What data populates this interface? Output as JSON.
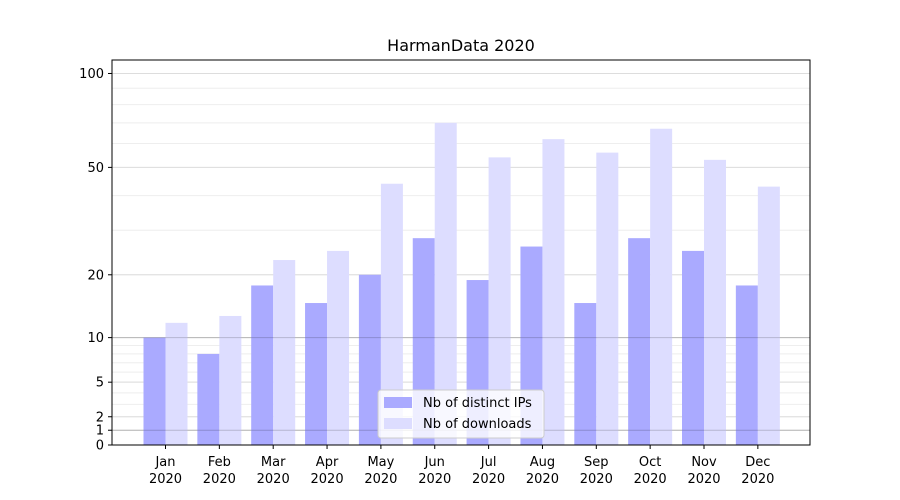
{
  "chart_data": {
    "type": "bar",
    "title": "HarmanData 2020",
    "xlabel": "",
    "ylabel": "",
    "yscale": "symlog",
    "ylim": [
      0,
      110
    ],
    "yticks": [
      0,
      1,
      2,
      5,
      10,
      20,
      50,
      100
    ],
    "ytick_labels": [
      "0",
      "1",
      "2",
      "5",
      "10",
      "20",
      "50",
      "100"
    ],
    "grid": "horizontal",
    "legend_position": "bottom-center",
    "categories": [
      {
        "month": "Jan",
        "year": "2020"
      },
      {
        "month": "Feb",
        "year": "2020"
      },
      {
        "month": "Mar",
        "year": "2020"
      },
      {
        "month": "Apr",
        "year": "2020"
      },
      {
        "month": "May",
        "year": "2020"
      },
      {
        "month": "Jun",
        "year": "2020"
      },
      {
        "month": "Jul",
        "year": "2020"
      },
      {
        "month": "Aug",
        "year": "2020"
      },
      {
        "month": "Sep",
        "year": "2020"
      },
      {
        "month": "Oct",
        "year": "2020"
      },
      {
        "month": "Nov",
        "year": "2020"
      },
      {
        "month": "Dec",
        "year": "2020"
      }
    ],
    "series": [
      {
        "name": "Nb of distinct IPs",
        "color": "#aaaaff",
        "values": [
          10,
          8,
          18,
          15,
          20,
          28,
          19,
          26,
          15,
          28,
          25,
          18
        ]
      },
      {
        "name": "Nb of downloads",
        "color": "#ddddff",
        "values": [
          12,
          13,
          23,
          25,
          44,
          70,
          54,
          62,
          56,
          67,
          53,
          43
        ]
      }
    ]
  }
}
